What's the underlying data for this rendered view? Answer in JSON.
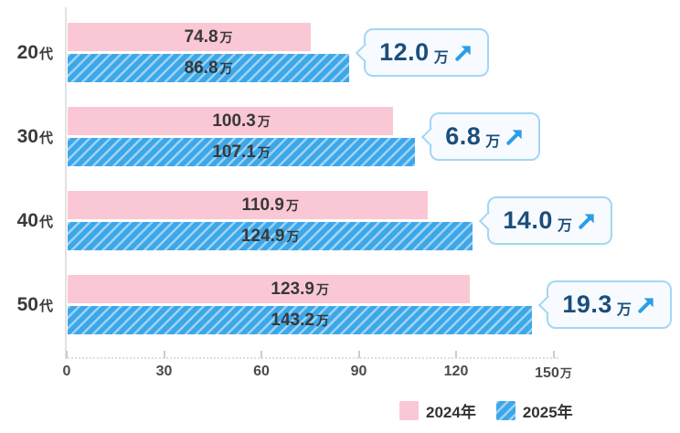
{
  "chart_data": {
    "type": "bar",
    "orientation": "horizontal",
    "categories": [
      "20代",
      "30代",
      "40代",
      "50代"
    ],
    "series": [
      {
        "name": "2024年",
        "values": [
          74.8,
          100.3,
          110.9,
          123.9
        ],
        "color": "#fac8d4",
        "pattern": "solid"
      },
      {
        "name": "2025年",
        "values": [
          86.8,
          107.1,
          124.9,
          143.2
        ],
        "color": "#3ca7e9",
        "pattern": "diagonal-stripes"
      }
    ],
    "annotations": [
      {
        "category": "20代",
        "diff": 12.0,
        "label": "12.0万",
        "direction": "up"
      },
      {
        "category": "30代",
        "diff": 6.8,
        "label": "6.8万",
        "direction": "up"
      },
      {
        "category": "40代",
        "diff": 14.0,
        "label": "14.0万",
        "direction": "up"
      },
      {
        "category": "50代",
        "diff": 19.3,
        "label": "19.3万",
        "direction": "up"
      }
    ],
    "value_suffix": "万",
    "x_ticks": [
      0,
      30,
      60,
      90,
      120,
      150
    ],
    "x_axis_unit": "万",
    "xlim": [
      0,
      150
    ],
    "grid": false,
    "legend_position": "bottom-right",
    "colors": {
      "pink_2024": "#fac8d4",
      "blue_2025": "#3ca7e9",
      "bubble_border": "#a3d6f4",
      "bubble_bg": "#f7fbff",
      "bubble_text": "#1b4e7b",
      "arrow": "#2d9ee5",
      "bar_text": "#383838",
      "axis_text": "#4b4b4b"
    }
  },
  "rows": [
    {
      "cat_num": "20",
      "cat_suffix": "代",
      "v2024": "74.8",
      "v2025": "86.8",
      "diff": "12.0",
      "unit": "万"
    },
    {
      "cat_num": "30",
      "cat_suffix": "代",
      "v2024": "100.3",
      "v2025": "107.1",
      "diff": "6.8",
      "unit": "万"
    },
    {
      "cat_num": "40",
      "cat_suffix": "代",
      "v2024": "110.9",
      "v2025": "124.9",
      "diff": "14.0",
      "unit": "万"
    },
    {
      "cat_num": "50",
      "cat_suffix": "代",
      "v2024": "123.9",
      "v2025": "143.2",
      "diff": "19.3",
      "unit": "万"
    }
  ],
  "legend": {
    "items": [
      {
        "label": "2024年"
      },
      {
        "label": "2025年"
      }
    ]
  }
}
